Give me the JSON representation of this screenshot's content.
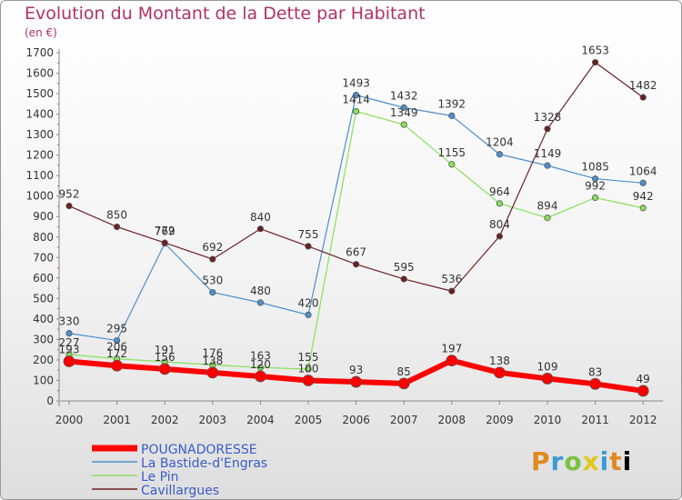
{
  "title": "Evolution du Montant de la Dette par Habitant",
  "unit": "(en €)",
  "logo": "Proxiti",
  "chart_data": {
    "type": "line",
    "x": [
      "2000",
      "2001",
      "2002",
      "2003",
      "2004",
      "2005",
      "2006",
      "2007",
      "2008",
      "2009",
      "2010",
      "2011",
      "2012"
    ],
    "ylim": [
      0,
      1700
    ],
    "yticks": [
      0,
      100,
      200,
      300,
      400,
      500,
      600,
      700,
      800,
      900,
      1000,
      1100,
      1200,
      1300,
      1400,
      1500,
      1600,
      1700
    ],
    "grid": false,
    "legend": "bottom-left",
    "series": [
      {
        "name": "POUGNADORESSE",
        "color": "#ff0000",
        "width": 6,
        "values": [
          193,
          172,
          156,
          138,
          120,
          100,
          93,
          85,
          197,
          138,
          109,
          83,
          49
        ]
      },
      {
        "name": "La Bastide-d'Engras",
        "color": "#4d8fcc",
        "width": 1.2,
        "values": [
          330,
          295,
          769,
          530,
          480,
          420,
          1493,
          1432,
          1392,
          1204,
          1149,
          1085,
          1064
        ]
      },
      {
        "name": "Le Pin",
        "color": "#88e05a",
        "width": 1.2,
        "values": [
          227,
          206,
          191,
          176,
          163,
          155,
          1414,
          1349,
          1155,
          964,
          894,
          992,
          942
        ]
      },
      {
        "name": "Cavillargues",
        "color": "#6b1f24",
        "width": 1.2,
        "values": [
          952,
          850,
          772,
          692,
          840,
          755,
          667,
          595,
          536,
          804,
          1328,
          1653,
          1482
        ]
      }
    ]
  }
}
